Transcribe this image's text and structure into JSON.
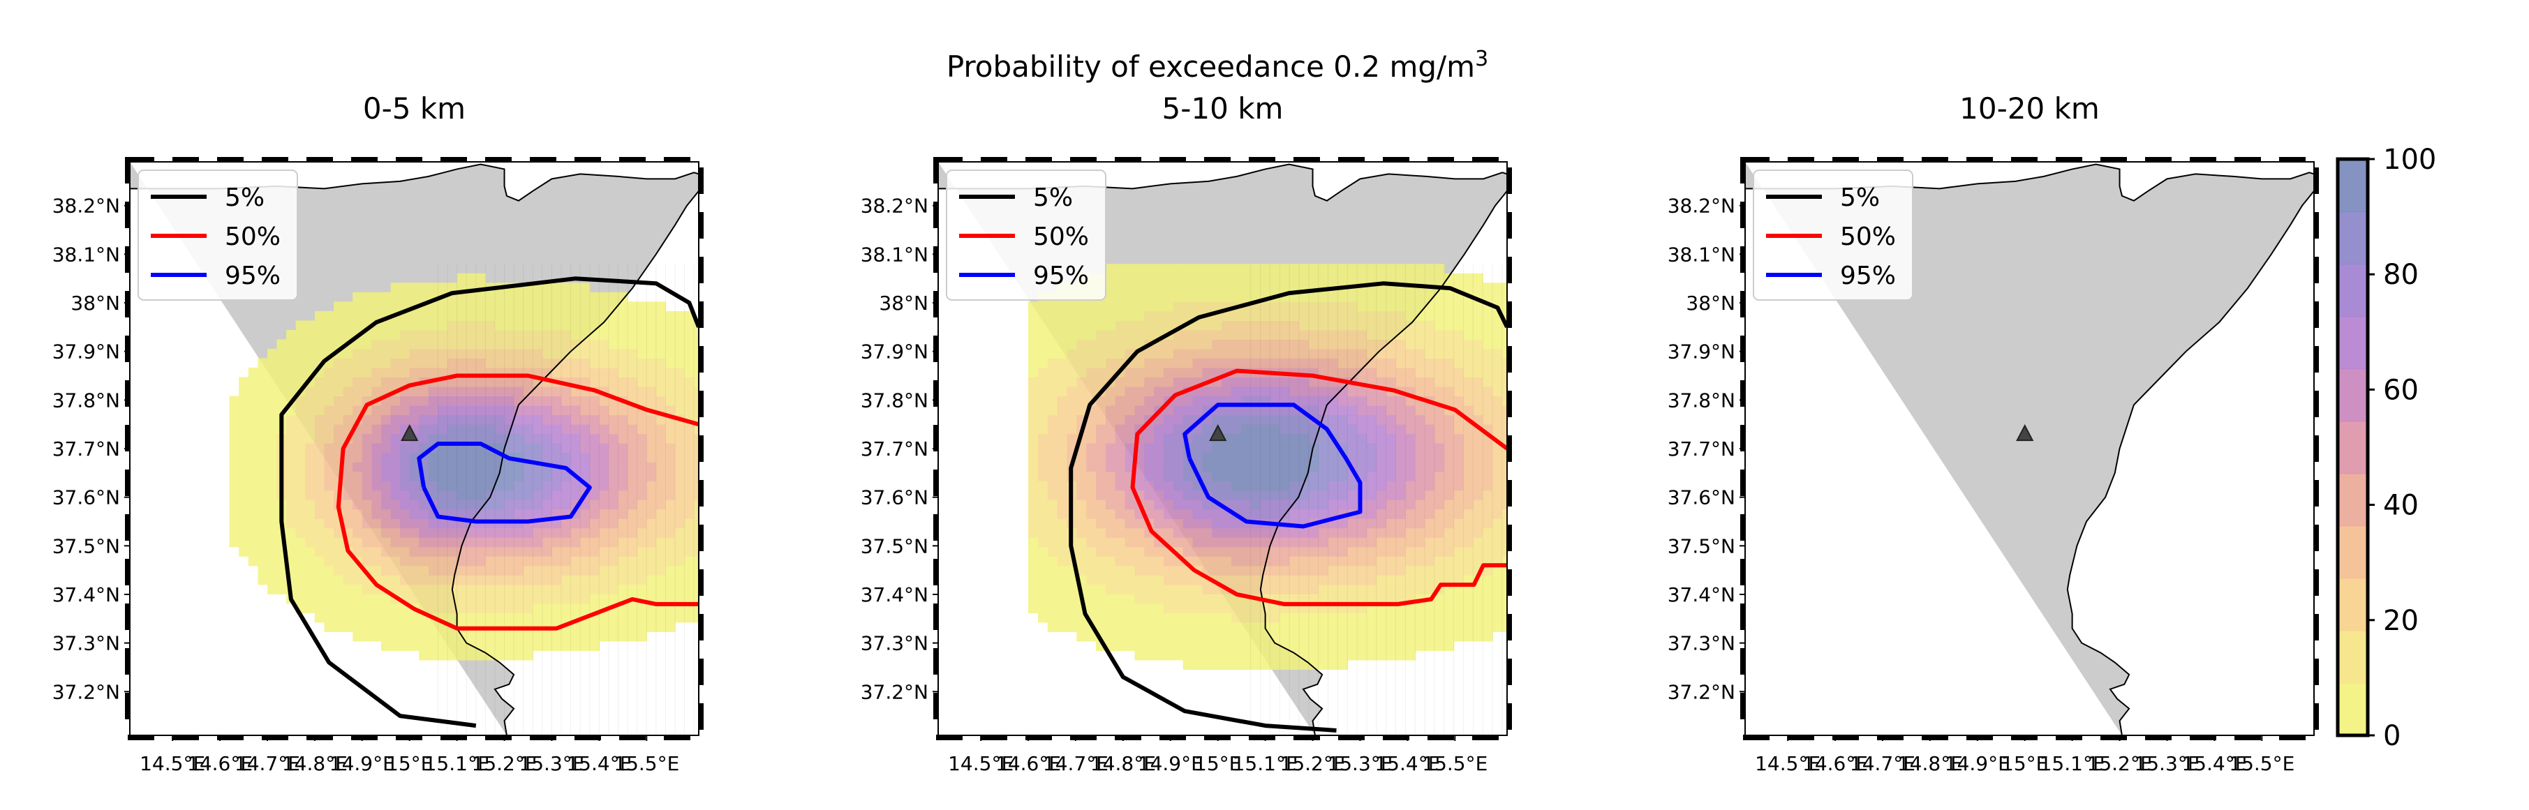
{
  "chart_data": {
    "type": "heatmap",
    "title_prefix": "Probability of exceedance 0.2 mg/m",
    "title_sup": "3",
    "xlim": [
      14.41,
      15.61
    ],
    "ylim": [
      37.11,
      38.29
    ],
    "xticks": [
      14.5,
      14.6,
      14.7,
      14.8,
      14.9,
      15.0,
      15.1,
      15.2,
      15.3,
      15.4,
      15.5
    ],
    "xtick_labels": [
      "14.5°E",
      "14.6°E",
      "14.7°E",
      "14.8°E",
      "14.9°E",
      "15°E",
      "15.1°E",
      "15.2°E",
      "15.3°E",
      "15.4°E",
      "15.5°E"
    ],
    "yticks": [
      37.2,
      37.3,
      37.4,
      37.5,
      37.6,
      37.7,
      37.8,
      37.9,
      38.0,
      38.1,
      38.2
    ],
    "ytick_labels": [
      "37.2°N",
      "37.3°N",
      "37.4°N",
      "37.5°N",
      "37.6°N",
      "37.7°N",
      "37.8°N",
      "37.9°N",
      "38°N",
      "38.1°N",
      "38.2°N"
    ],
    "legend_location": "upper-left",
    "legend": [
      {
        "label": "5%",
        "color": "#000000"
      },
      {
        "label": "50%",
        "color": "#ff0000"
      },
      {
        "label": "95%",
        "color": "#0000ff"
      }
    ],
    "vent": {
      "lon": 15.0,
      "lat": 37.73
    },
    "colorbar": {
      "ticks": [
        0,
        20,
        40,
        60,
        80,
        100
      ],
      "tick_labels": [
        "0",
        "20",
        "40",
        "60",
        "80",
        "100"
      ],
      "colors": [
        "#f2f27a",
        "#f5e482",
        "#f7d08a",
        "#f4bc8e",
        "#eaa796",
        "#dc92a6",
        "#c983bc",
        "#b47ecf",
        "#9f7ecf",
        "#8a84c8",
        "#7787bb"
      ]
    },
    "panels": [
      {
        "title": "0-5 km",
        "plume": {
          "center": [
            15.12,
            37.66
          ],
          "sx": 0.23,
          "sy": 0.135,
          "skew": 0.2,
          "west_lon": 14.62,
          "extent": [
            14.62,
            15.62,
            37.11,
            38.08
          ]
        },
        "contours": {
          "p5": [
            [
              15.14,
              37.13
            ],
            [
              14.98,
              37.15
            ],
            [
              14.83,
              37.26
            ],
            [
              14.75,
              37.39
            ],
            [
              14.73,
              37.55
            ],
            [
              14.73,
              37.77
            ],
            [
              14.82,
              37.88
            ],
            [
              14.93,
              37.96
            ],
            [
              15.09,
              38.02
            ],
            [
              15.35,
              38.05
            ],
            [
              15.52,
              38.04
            ],
            [
              15.59,
              38.0
            ],
            [
              15.61,
              37.95
            ]
          ],
          "p50": [
            [
              15.61,
              37.38
            ],
            [
              15.52,
              37.38
            ],
            [
              15.47,
              37.39
            ],
            [
              15.39,
              37.36
            ],
            [
              15.31,
              37.33
            ],
            [
              15.1,
              37.33
            ],
            [
              15.01,
              37.37
            ],
            [
              14.93,
              37.42
            ],
            [
              14.87,
              37.49
            ],
            [
              14.85,
              37.58
            ],
            [
              14.86,
              37.7
            ],
            [
              14.91,
              37.79
            ],
            [
              15.0,
              37.83
            ],
            [
              15.1,
              37.85
            ],
            [
              15.25,
              37.85
            ],
            [
              15.39,
              37.82
            ],
            [
              15.5,
              37.78
            ],
            [
              15.61,
              37.75
            ]
          ],
          "p95": [
            [
              15.03,
              37.62
            ],
            [
              15.06,
              37.56
            ],
            [
              15.14,
              37.55
            ],
            [
              15.25,
              37.55
            ],
            [
              15.34,
              37.56
            ],
            [
              15.38,
              37.62
            ],
            [
              15.33,
              37.66
            ],
            [
              15.21,
              37.68
            ],
            [
              15.15,
              37.71
            ],
            [
              15.06,
              37.71
            ],
            [
              15.02,
              37.68
            ],
            [
              15.03,
              37.62
            ]
          ]
        }
      },
      {
        "title": "5-10 km",
        "plume": {
          "center": [
            15.08,
            37.68
          ],
          "sx": 0.28,
          "sy": 0.15,
          "skew": 0.12,
          "west_lon": 14.6,
          "extent": [
            14.6,
            15.62,
            37.11,
            38.08
          ]
        },
        "contours": {
          "p5": [
            [
              15.25,
              37.12
            ],
            [
              15.1,
              37.13
            ],
            [
              14.93,
              37.16
            ],
            [
              14.8,
              37.23
            ],
            [
              14.72,
              37.36
            ],
            [
              14.69,
              37.5
            ],
            [
              14.69,
              37.66
            ],
            [
              14.73,
              37.79
            ],
            [
              14.83,
              37.9
            ],
            [
              14.96,
              37.97
            ],
            [
              15.15,
              38.02
            ],
            [
              15.35,
              38.04
            ],
            [
              15.49,
              38.03
            ],
            [
              15.59,
              37.99
            ],
            [
              15.61,
              37.95
            ]
          ],
          "p50": [
            [
              15.61,
              37.46
            ],
            [
              15.56,
              37.46
            ],
            [
              15.54,
              37.42
            ],
            [
              15.47,
              37.42
            ],
            [
              15.45,
              37.39
            ],
            [
              15.38,
              37.38
            ],
            [
              15.27,
              37.38
            ],
            [
              15.14,
              37.38
            ],
            [
              15.04,
              37.4
            ],
            [
              14.95,
              37.45
            ],
            [
              14.86,
              37.53
            ],
            [
              14.82,
              37.62
            ],
            [
              14.83,
              37.73
            ],
            [
              14.91,
              37.81
            ],
            [
              15.04,
              37.86
            ],
            [
              15.2,
              37.85
            ],
            [
              15.37,
              37.82
            ],
            [
              15.5,
              37.78
            ],
            [
              15.61,
              37.7
            ]
          ],
          "p95": [
            [
              14.94,
              37.68
            ],
            [
              14.98,
              37.6
            ],
            [
              15.06,
              37.55
            ],
            [
              15.18,
              37.54
            ],
            [
              15.26,
              37.56
            ],
            [
              15.3,
              37.57
            ],
            [
              15.3,
              37.63
            ],
            [
              15.27,
              37.68
            ],
            [
              15.23,
              37.74
            ],
            [
              15.16,
              37.79
            ],
            [
              15.0,
              37.79
            ],
            [
              14.93,
              37.73
            ],
            [
              14.94,
              37.68
            ]
          ]
        }
      },
      {
        "title": "10-20 km",
        "plume": null,
        "contours": null
      }
    ]
  }
}
